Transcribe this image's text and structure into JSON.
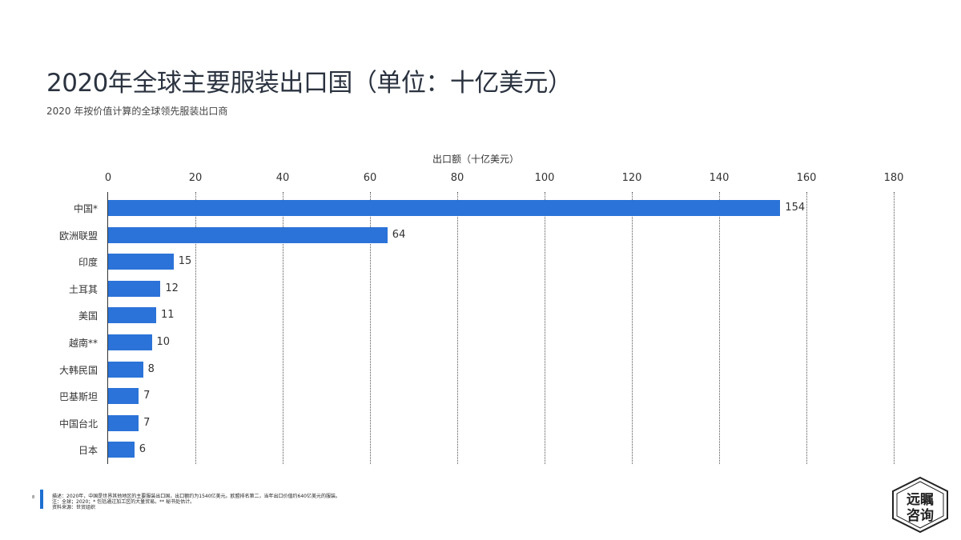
{
  "header": {
    "title": "2020年全球主要服装出口国（单位：十亿美元）",
    "subtitle": "2020 年按价值计算的全球领先服装出口商"
  },
  "chart_data": {
    "type": "bar",
    "orientation": "horizontal",
    "title": "2020年全球主要服装出口国（单位：十亿美元）",
    "subtitle": "2020 年按价值计算的全球领先服装出口商",
    "xlabel": "出口额（十亿美元）",
    "ylabel": "",
    "xlim": [
      0,
      180
    ],
    "x_ticks": [
      "0",
      "20",
      "40",
      "60",
      "80",
      "100",
      "120",
      "140",
      "160",
      "180"
    ],
    "grid": "vertical dotted",
    "categories": [
      "中国*",
      "欧洲联盟",
      "印度",
      "土耳其",
      "美国",
      "越南**",
      "大韩民国",
      "巴基斯坦",
      "中国台北",
      "日本"
    ],
    "values": [
      154,
      64,
      15,
      12,
      11,
      10,
      8,
      7,
      7,
      6
    ],
    "bar_color": "#2b73d8"
  },
  "footnote": {
    "number": "8",
    "lines": [
      "描述：2020年，中国是世界其他地区的主要服装出口国，出口额约为1540亿美元。欧盟排名第二，当年出口价值约640亿美元的服装。",
      "注：全球；2020；* 包括通过加工区的大量贸易。** 秘书处估计。",
      "资料来源：世贸组织"
    ]
  },
  "logo": {
    "line1": "远瞩",
    "line2": "咨询"
  }
}
